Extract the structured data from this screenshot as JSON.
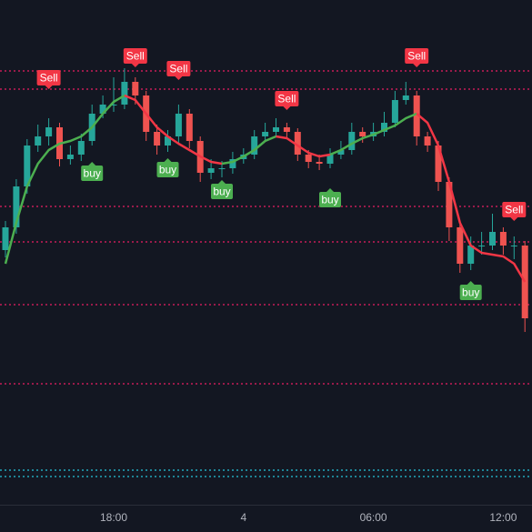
{
  "chart_data": {
    "type": "candlestick",
    "categories": [
      null,
      null,
      null,
      null,
      null,
      null,
      null,
      null,
      null,
      null,
      "18:00",
      null,
      null,
      null,
      null,
      null,
      null,
      null,
      null,
      null,
      null,
      null,
      "4",
      null,
      null,
      null,
      null,
      null,
      null,
      null,
      null,
      null,
      null,
      null,
      "06:00",
      null,
      null,
      null,
      null,
      null,
      null,
      null,
      null,
      null,
      null,
      null,
      "12:00",
      null,
      null
    ],
    "open": [
      280,
      305,
      350,
      395,
      405,
      415,
      380,
      385,
      400,
      430,
      440,
      440,
      465,
      450,
      410,
      395,
      405,
      430,
      400,
      365,
      370,
      370,
      380,
      385,
      405,
      410,
      415,
      410,
      385,
      377,
      375,
      385,
      390,
      410,
      405,
      410,
      420,
      445,
      450,
      405,
      395,
      355,
      305,
      265,
      285,
      285,
      300,
      285,
      285
    ],
    "high": [
      312,
      358,
      402,
      418,
      425,
      420,
      395,
      408,
      440,
      450,
      470,
      480,
      470,
      455,
      418,
      412,
      440,
      435,
      405,
      380,
      378,
      388,
      392,
      412,
      420,
      425,
      420,
      414,
      390,
      385,
      392,
      400,
      420,
      415,
      420,
      432,
      455,
      465,
      455,
      410,
      400,
      360,
      310,
      295,
      300,
      320,
      305,
      295,
      290
    ],
    "low": [
      272,
      298,
      342,
      388,
      395,
      372,
      374,
      378,
      395,
      425,
      432,
      435,
      440,
      400,
      385,
      388,
      398,
      392,
      355,
      358,
      360,
      364,
      375,
      380,
      400,
      405,
      402,
      378,
      370,
      368,
      370,
      380,
      385,
      398,
      400,
      405,
      415,
      440,
      395,
      388,
      345,
      290,
      255,
      258,
      275,
      280,
      275,
      270,
      190
    ],
    "close": [
      305,
      350,
      395,
      405,
      415,
      380,
      385,
      400,
      430,
      440,
      440,
      465,
      450,
      410,
      395,
      405,
      430,
      400,
      365,
      370,
      370,
      380,
      385,
      405,
      410,
      415,
      410,
      385,
      377,
      375,
      385,
      390,
      410,
      405,
      410,
      420,
      445,
      450,
      405,
      395,
      355,
      305,
      265,
      285,
      285,
      300,
      285,
      285,
      205
    ],
    "up_color": "#26a69a",
    "down_color": "#ef5350",
    "ma_up": {
      "color": "#4caf50",
      "values": [
        265,
        310,
        350,
        375,
        390,
        397,
        400,
        405,
        415,
        430,
        443,
        450,
        null,
        null,
        null,
        null,
        null,
        null,
        null,
        null,
        375,
        377,
        383,
        390,
        400,
        405,
        null,
        null,
        null,
        null,
        385,
        390,
        397,
        403,
        407,
        412,
        417,
        425,
        430,
        null,
        null,
        null,
        null,
        null,
        null,
        null,
        null,
        null,
        null
      ]
    },
    "ma_down": {
      "color": "#f23645",
      "values": [
        null,
        null,
        null,
        null,
        null,
        null,
        null,
        null,
        null,
        null,
        null,
        450,
        445,
        430,
        415,
        405,
        397,
        390,
        383,
        377,
        375,
        null,
        null,
        null,
        null,
        405,
        403,
        395,
        387,
        383,
        385,
        null,
        null,
        null,
        null,
        null,
        null,
        null,
        430,
        420,
        395,
        355,
        310,
        285,
        277,
        275,
        273,
        265,
        245
      ]
    },
    "sell": {
      "label": "Sell",
      "color": "#f23645",
      "values": [
        null,
        null,
        null,
        null,
        457,
        null,
        null,
        null,
        null,
        null,
        null,
        null,
        481,
        null,
        null,
        null,
        467,
        null,
        null,
        null,
        null,
        null,
        null,
        null,
        null,
        null,
        434,
        null,
        null,
        null,
        null,
        null,
        null,
        null,
        null,
        null,
        null,
        null,
        481,
        null,
        null,
        null,
        null,
        null,
        null,
        null,
        null,
        312,
        null
      ]
    },
    "buy": {
      "label": "buy",
      "color": "#4caf50",
      "values": [
        null,
        null,
        null,
        null,
        null,
        null,
        null,
        null,
        377,
        null,
        null,
        null,
        null,
        null,
        null,
        381,
        null,
        null,
        null,
        null,
        357,
        null,
        null,
        null,
        null,
        null,
        null,
        null,
        null,
        null,
        348,
        null,
        null,
        null,
        null,
        null,
        null,
        null,
        null,
        null,
        null,
        null,
        null,
        246,
        null,
        null,
        null,
        null,
        null
      ]
    },
    "levels": [
      {
        "color": "#e91e63",
        "values": [
          477,
          457,
          328,
          289,
          220,
          133
        ]
      },
      {
        "color": "#26c6da",
        "values": [
          38,
          31
        ]
      }
    ],
    "ylim": [
      0,
      555
    ]
  }
}
